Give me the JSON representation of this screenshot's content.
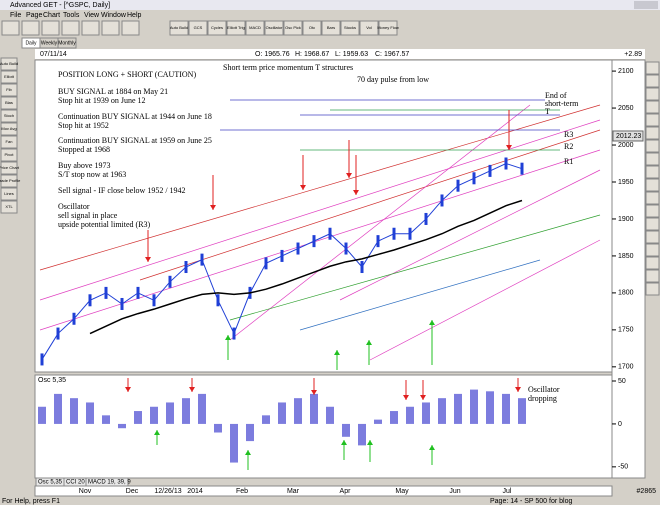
{
  "window": {
    "title": "Advanced GET - [^GSPC, Daily]",
    "menu": [
      "File",
      "Page",
      "Chart",
      "Tools",
      "View",
      "Window",
      "Help"
    ],
    "toolbar": [
      "Auto Build",
      "GCS",
      "Cycles",
      "Elliott Trig",
      "MACD",
      "Oscillator",
      "Osc Pick",
      "Otc",
      "Bars",
      "Stocks",
      "Vol",
      "Money Flow"
    ],
    "left_toolbar": [
      "Auto Build",
      "Elliott",
      "Fib",
      "Bias",
      "Stoch",
      "Mov Avg",
      "Fan",
      "Pivot",
      "Price Chart",
      "Trade Profile",
      "Lines",
      "XTL"
    ],
    "tabs": [
      "Daily",
      "Weekly",
      "Monthly"
    ],
    "status": "For Help, press F1",
    "page": "Page: 14 - SP 500 for blog",
    "id": "#2865"
  },
  "header": {
    "date": "07/11/14",
    "open": "O: 1965.76",
    "high": "H: 1968.67",
    "low": "L: 1959.63",
    "close": "C: 1967.57",
    "change": "+2.89"
  },
  "time_axis": [
    "Nov",
    "Dec",
    "12/26/13",
    "2014",
    "Feb",
    "Mar",
    "Apr",
    "May",
    "Jun",
    "Jul"
  ],
  "chart_data": [
    {
      "type": "line",
      "annotations": [
        "POSITION LONG + SHORT (CAUTION)",
        "BUY SIGNAL at 1884 on May 21",
        "Stop hit at 1939 on June 12",
        "Continuation BUY SIGNAL at 1944 on June 18",
        "Stop hit at 1952",
        "Continuation BUY SIGNAL at 1959 on June 25",
        "Stopped at 1968",
        "Buy above 1973",
        "S/T stop now at 1963",
        "Sell signal - IF close below 1952 / 1942",
        "Oscillator",
        "sell signal in place",
        "upside potential limited (R3)",
        "Short term price momentum T structures",
        "70 day pulse from low",
        "End of",
        "short-term",
        "T"
      ],
      "levels": [
        "R3",
        "R2",
        "R1"
      ],
      "last_price": 2012.23,
      "ylim": [
        1693,
        2115
      ],
      "yticks": [
        2100,
        2050,
        2000,
        1950,
        1900,
        1850,
        1800,
        1750,
        1700
      ],
      "series": [
        {
          "color": "#1f3fd6",
          "values": [
            1710,
            1745,
            1765,
            1790,
            1800,
            1785,
            1800,
            1790,
            1815,
            1835,
            1845,
            1790,
            1745,
            1800,
            1840,
            1850,
            1860,
            1870,
            1880,
            1860,
            1835,
            1870,
            1880,
            1880,
            1900,
            1925,
            1945,
            1955,
            1965,
            1975,
            1968
          ]
        },
        {
          "color": "#000000",
          "values": [
            null,
            null,
            null,
            1745,
            1755,
            1765,
            1772,
            1778,
            1785,
            1792,
            1798,
            1800,
            1798,
            1800,
            1805,
            1812,
            1820,
            1828,
            1836,
            1842,
            1846,
            1852,
            1858,
            1865,
            1872,
            1880,
            1890,
            1898,
            1908,
            1918,
            1925
          ]
        }
      ]
    },
    {
      "type": "bar",
      "title": "Osc 5,35",
      "tabs": [
        "CCI 20",
        "MACD 19, 39, 9"
      ],
      "annotations": [
        "Oscillator",
        "dropping"
      ],
      "ylim": [
        -63,
        57
      ],
      "yticks": [
        50,
        0,
        -50
      ],
      "color": "#5b5bd6",
      "values": [
        20,
        35,
        30,
        25,
        10,
        -5,
        15,
        20,
        25,
        30,
        35,
        -10,
        -45,
        -20,
        10,
        25,
        30,
        35,
        20,
        -15,
        -25,
        5,
        15,
        20,
        25,
        30,
        35,
        40,
        38,
        35,
        30
      ]
    }
  ]
}
